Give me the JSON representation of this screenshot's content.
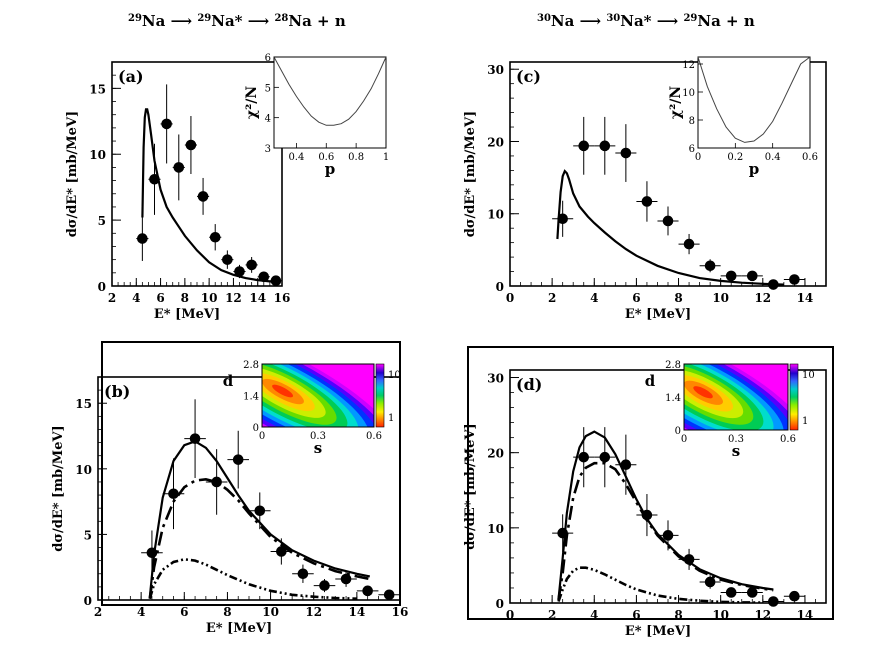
{
  "headers": {
    "left": {
      "parts": [
        {
          "sup": "29",
          "base": "Na"
        },
        {
          "arrow": true
        },
        {
          "sup": "29",
          "base": "Na*"
        },
        {
          "arrow": true
        },
        {
          "sup": "28",
          "base": "Na + n"
        }
      ]
    },
    "right": {
      "parts": [
        {
          "sup": "30",
          "base": "Na"
        },
        {
          "arrow": true
        },
        {
          "sup": "30",
          "base": "Na*"
        },
        {
          "arrow": true
        },
        {
          "sup": "29",
          "base": "Na + n"
        }
      ]
    }
  },
  "chart_data": [
    {
      "id": "a",
      "type": "line",
      "label": "(a)",
      "xlabel": "E* [MeV]",
      "ylabel": "dσ/dE* [mb/MeV]",
      "xlim": [
        2,
        16
      ],
      "ylim": [
        0,
        17
      ],
      "xticks": [
        2,
        4,
        6,
        8,
        10,
        12,
        14,
        16
      ],
      "yticks": [
        0,
        5,
        10,
        15
      ],
      "points": [
        {
          "x": 4.5,
          "y": 3.6,
          "xerr": 0.5,
          "yerr": 1.7
        },
        {
          "x": 5.5,
          "y": 8.1,
          "xerr": 0.5,
          "yerr": 2.7
        },
        {
          "x": 6.5,
          "y": 12.3,
          "xerr": 0.5,
          "yerr": 3.0
        },
        {
          "x": 7.5,
          "y": 9.0,
          "xerr": 0.5,
          "yerr": 2.5
        },
        {
          "x": 8.5,
          "y": 10.7,
          "xerr": 0.5,
          "yerr": 2.2
        },
        {
          "x": 9.5,
          "y": 6.8,
          "xerr": 0.5,
          "yerr": 1.4
        },
        {
          "x": 10.5,
          "y": 3.7,
          "xerr": 0.5,
          "yerr": 1.0
        },
        {
          "x": 11.5,
          "y": 2.0,
          "xerr": 0.5,
          "yerr": 0.7
        },
        {
          "x": 12.5,
          "y": 1.1,
          "xerr": 0.5,
          "yerr": 0.5
        },
        {
          "x": 13.5,
          "y": 1.6,
          "xerr": 0.5,
          "yerr": 0.6
        },
        {
          "x": 14.5,
          "y": 0.7,
          "xerr": 0.5,
          "yerr": 0.4
        },
        {
          "x": 15.5,
          "y": 0.4,
          "xerr": 0.5,
          "yerr": 0.3
        }
      ],
      "series": [
        {
          "name": "calc",
          "style": "solid",
          "x": [
            4.5,
            4.6,
            4.7,
            4.8,
            4.9,
            5.0,
            5.2,
            5.5,
            6.0,
            6.5,
            7.0,
            7.5,
            8.0,
            9.0,
            10.0,
            11.0,
            12.0,
            13.0,
            14.0,
            15.0,
            15.6
          ],
          "y": [
            5.2,
            10.5,
            12.8,
            13.4,
            13.4,
            13.0,
            11.6,
            9.5,
            7.3,
            6.0,
            5.2,
            4.5,
            3.8,
            2.7,
            1.8,
            1.2,
            0.85,
            0.6,
            0.45,
            0.35,
            0.3
          ]
        }
      ],
      "inset": {
        "type": "line",
        "xlabel": "p",
        "ylabel": "χ²/N",
        "xlim": [
          0.25,
          1.0
        ],
        "ylim": [
          3,
          6
        ],
        "xticks": [
          0.4,
          0.6,
          0.8,
          1
        ],
        "yticks": [
          3,
          4,
          5,
          6
        ],
        "x": [
          0.25,
          0.3,
          0.35,
          0.4,
          0.45,
          0.5,
          0.55,
          0.6,
          0.65,
          0.7,
          0.75,
          0.8,
          0.85,
          0.9,
          0.95,
          1.0
        ],
        "y": [
          6.0,
          5.55,
          5.1,
          4.7,
          4.35,
          4.05,
          3.85,
          3.75,
          3.75,
          3.8,
          3.95,
          4.2,
          4.55,
          4.95,
          5.45,
          6.0
        ]
      }
    },
    {
      "id": "c",
      "type": "line",
      "label": "(c)",
      "xlabel": "E* [MeV]",
      "ylabel": "dσ/dE* [mb/MeV]",
      "xlim": [
        0,
        15
      ],
      "ylim": [
        0,
        31
      ],
      "xticks": [
        0,
        2,
        4,
        6,
        8,
        10,
        12,
        14
      ],
      "yticks": [
        0,
        10,
        20,
        30
      ],
      "points": [
        {
          "x": 2.5,
          "y": 9.3,
          "xerr": 0.5,
          "yerr": 2.5
        },
        {
          "x": 3.5,
          "y": 19.4,
          "xerr": 0.5,
          "yerr": 4.0
        },
        {
          "x": 4.5,
          "y": 19.4,
          "xerr": 0.5,
          "yerr": 4.0
        },
        {
          "x": 5.5,
          "y": 18.4,
          "xerr": 0.5,
          "yerr": 4.0
        },
        {
          "x": 6.5,
          "y": 11.7,
          "xerr": 0.5,
          "yerr": 2.8
        },
        {
          "x": 7.5,
          "y": 9.0,
          "xerr": 0.5,
          "yerr": 2.0
        },
        {
          "x": 8.5,
          "y": 5.8,
          "xerr": 0.5,
          "yerr": 1.4
        },
        {
          "x": 9.5,
          "y": 2.8,
          "xerr": 0.5,
          "yerr": 0.9
        },
        {
          "x": 10.5,
          "y": 1.4,
          "xerr": 0.5,
          "yerr": 0.6
        },
        {
          "x": 11.5,
          "y": 1.4,
          "xerr": 0.5,
          "yerr": 0.5
        },
        {
          "x": 12.5,
          "y": 0.2,
          "xerr": 0.5,
          "yerr": 0.4
        },
        {
          "x": 13.5,
          "y": 0.9,
          "xerr": 0.5,
          "yerr": 0.5
        }
      ],
      "series": [
        {
          "name": "calc",
          "style": "solid",
          "x": [
            2.25,
            2.3,
            2.4,
            2.5,
            2.6,
            2.7,
            2.8,
            3.0,
            3.3,
            3.7,
            4.0,
            4.5,
            5.0,
            5.5,
            6.0,
            7.0,
            8.0,
            9.0,
            10.0,
            11.0,
            12.0,
            13.0
          ],
          "y": [
            6.5,
            9.0,
            13.0,
            15.2,
            15.9,
            15.6,
            14.8,
            12.8,
            11.0,
            9.6,
            8.7,
            7.4,
            6.2,
            5.1,
            4.2,
            2.8,
            1.8,
            1.1,
            0.7,
            0.45,
            0.3,
            0.2
          ]
        }
      ],
      "inset": {
        "type": "line",
        "xlabel": "p",
        "ylabel": "χ²/N",
        "xlim": [
          0,
          0.6
        ],
        "ylim": [
          6,
          12.5
        ],
        "xticks": [
          0,
          0.2,
          0.4,
          0.6
        ],
        "yticks": [
          6,
          8,
          10,
          12
        ],
        "x": [
          0.0,
          0.05,
          0.1,
          0.15,
          0.2,
          0.25,
          0.3,
          0.35,
          0.4,
          0.45,
          0.5,
          0.55,
          0.6
        ],
        "y": [
          12.5,
          10.4,
          8.8,
          7.5,
          6.7,
          6.4,
          6.5,
          7.0,
          7.9,
          9.2,
          10.6,
          12.0,
          12.5
        ]
      }
    },
    {
      "id": "b",
      "type": "line",
      "label": "(b)",
      "xlabel": "E* [MeV]",
      "ylabel": "dσ/dE* [mb/MeV]",
      "xlim": [
        2,
        16
      ],
      "ylim": [
        0,
        17
      ],
      "xticks": [
        2,
        4,
        6,
        8,
        10,
        12,
        14,
        16
      ],
      "yticks": [
        0,
        5,
        10,
        15
      ],
      "points": [
        {
          "x": 4.5,
          "y": 3.6,
          "xerr": 0.5,
          "yerr": 1.7
        },
        {
          "x": 5.5,
          "y": 8.1,
          "xerr": 0.5,
          "yerr": 2.7
        },
        {
          "x": 6.5,
          "y": 12.3,
          "xerr": 0.5,
          "yerr": 3.0
        },
        {
          "x": 7.5,
          "y": 9.0,
          "xerr": 0.5,
          "yerr": 2.5
        },
        {
          "x": 8.5,
          "y": 10.7,
          "xerr": 0.5,
          "yerr": 2.2
        },
        {
          "x": 9.5,
          "y": 6.8,
          "xerr": 0.5,
          "yerr": 1.4
        },
        {
          "x": 10.5,
          "y": 3.7,
          "xerr": 0.5,
          "yerr": 1.0
        },
        {
          "x": 11.5,
          "y": 2.0,
          "xerr": 0.5,
          "yerr": 0.7
        },
        {
          "x": 12.5,
          "y": 1.1,
          "xerr": 0.5,
          "yerr": 0.5
        },
        {
          "x": 13.5,
          "y": 1.6,
          "xerr": 0.5,
          "yerr": 0.6
        },
        {
          "x": 14.5,
          "y": 0.7,
          "xerr": 0.5,
          "yerr": 0.4
        },
        {
          "x": 15.5,
          "y": 0.4,
          "xerr": 0.5,
          "yerr": 0.3
        }
      ],
      "series": [
        {
          "name": "total",
          "style": "solid",
          "x": [
            4.4,
            4.6,
            5.0,
            5.5,
            6.0,
            6.5,
            7.0,
            7.5,
            8.0,
            8.5,
            9.0,
            10.0,
            11.0,
            12.0,
            13.0,
            14.0,
            14.6
          ],
          "y": [
            0.2,
            3.5,
            7.8,
            10.6,
            11.8,
            12.1,
            11.6,
            10.6,
            9.3,
            8.0,
            6.8,
            5.0,
            3.8,
            3.0,
            2.4,
            2.0,
            1.8
          ]
        },
        {
          "name": "component1",
          "style": "dash-dot",
          "x": [
            4.4,
            4.6,
            5.0,
            5.5,
            6.0,
            6.5,
            7.0,
            7.5,
            8.0,
            8.5,
            9.0,
            10.0,
            11.0,
            12.0,
            13.0,
            14.0,
            14.6
          ],
          "y": [
            0.1,
            2.5,
            5.5,
            7.5,
            8.6,
            9.1,
            9.2,
            9.0,
            8.4,
            7.6,
            6.6,
            4.8,
            3.6,
            2.8,
            2.2,
            1.8,
            1.6
          ]
        },
        {
          "name": "component2",
          "style": "dash-dot-dot",
          "x": [
            4.4,
            4.6,
            5.0,
            5.5,
            6.0,
            6.5,
            7.0,
            7.5,
            8.0,
            9.0,
            10.0,
            11.0,
            12.0,
            13.0,
            14.0
          ],
          "y": [
            0.1,
            1.2,
            2.3,
            2.9,
            3.1,
            3.0,
            2.7,
            2.3,
            1.9,
            1.2,
            0.7,
            0.4,
            0.25,
            0.15,
            0.1
          ]
        }
      ],
      "inset": {
        "type": "heatmap",
        "xlabel": "s",
        "ylabel": "d",
        "xlim": [
          0,
          0.6
        ],
        "ylim": [
          0,
          2.8
        ],
        "xticks": [
          "0",
          "0.3",
          "0.6"
        ],
        "yticks": [
          "0",
          "1.4",
          "2.8"
        ],
        "zticks": [
          "1",
          "10"
        ]
      }
    },
    {
      "id": "d",
      "type": "line",
      "label": "(d)",
      "xlabel": "E* [MeV]",
      "ylabel": "dσ/dE* [mb/MeV]",
      "xlim": [
        0,
        15
      ],
      "ylim": [
        0,
        31
      ],
      "xticks": [
        0,
        2,
        4,
        6,
        8,
        10,
        12,
        14
      ],
      "yticks": [
        0,
        10,
        20,
        30
      ],
      "points": [
        {
          "x": 2.5,
          "y": 9.3,
          "xerr": 0.5,
          "yerr": 2.5
        },
        {
          "x": 3.5,
          "y": 19.4,
          "xerr": 0.5,
          "yerr": 4.0
        },
        {
          "x": 4.5,
          "y": 19.4,
          "xerr": 0.5,
          "yerr": 4.0
        },
        {
          "x": 5.5,
          "y": 18.4,
          "xerr": 0.5,
          "yerr": 4.0
        },
        {
          "x": 6.5,
          "y": 11.7,
          "xerr": 0.5,
          "yerr": 2.8
        },
        {
          "x": 7.5,
          "y": 9.0,
          "xerr": 0.5,
          "yerr": 2.0
        },
        {
          "x": 8.5,
          "y": 5.8,
          "xerr": 0.5,
          "yerr": 1.4
        },
        {
          "x": 9.5,
          "y": 2.8,
          "xerr": 0.5,
          "yerr": 0.9
        },
        {
          "x": 10.5,
          "y": 1.4,
          "xerr": 0.5,
          "yerr": 0.6
        },
        {
          "x": 11.5,
          "y": 1.4,
          "xerr": 0.5,
          "yerr": 0.5
        },
        {
          "x": 12.5,
          "y": 0.2,
          "xerr": 0.5,
          "yerr": 0.4
        },
        {
          "x": 13.5,
          "y": 0.9,
          "xerr": 0.5,
          "yerr": 0.5
        }
      ],
      "series": [
        {
          "name": "total",
          "style": "solid",
          "x": [
            2.3,
            2.5,
            2.7,
            3.0,
            3.3,
            3.6,
            4.0,
            4.5,
            5.0,
            5.5,
            6.0,
            6.5,
            7.0,
            8.0,
            9.0,
            10.0,
            11.0,
            12.0,
            12.5
          ],
          "y": [
            0.5,
            6.0,
            12.0,
            17.5,
            20.7,
            22.2,
            22.8,
            22.0,
            19.8,
            16.8,
            13.8,
            11.2,
            9.2,
            6.4,
            4.5,
            3.3,
            2.5,
            2.0,
            1.8
          ]
        },
        {
          "name": "component1",
          "style": "dash-dot",
          "x": [
            2.3,
            2.5,
            2.7,
            3.0,
            3.3,
            3.6,
            4.0,
            4.5,
            5.0,
            5.5,
            6.0,
            6.5,
            7.0,
            8.0,
            9.0,
            10.0,
            11.0,
            12.0,
            12.5
          ],
          "y": [
            0.4,
            4.0,
            9.0,
            14.0,
            16.8,
            18.0,
            18.6,
            18.6,
            17.8,
            15.8,
            13.4,
            11.0,
            9.0,
            6.2,
            4.3,
            3.1,
            2.4,
            1.9,
            1.7
          ]
        },
        {
          "name": "component2",
          "style": "dash-dot-dot",
          "x": [
            2.3,
            2.5,
            2.7,
            3.0,
            3.3,
            3.6,
            4.0,
            4.5,
            5.0,
            5.5,
            6.0,
            7.0,
            8.0,
            9.0,
            10.0,
            11.0,
            12.0
          ],
          "y": [
            0.2,
            1.8,
            3.2,
            4.3,
            4.7,
            4.7,
            4.4,
            3.8,
            3.1,
            2.4,
            1.8,
            1.0,
            0.55,
            0.3,
            0.15,
            0.08,
            0.05
          ]
        }
      ],
      "inset": {
        "type": "heatmap",
        "xlabel": "s",
        "ylabel": "d",
        "xlim": [
          0,
          0.6
        ],
        "ylim": [
          0,
          2.8
        ],
        "xticks": [
          "0",
          "0.3",
          "0.6"
        ],
        "yticks": [
          "0",
          "1.4",
          "2.8"
        ],
        "zticks": [
          "1",
          "10"
        ]
      }
    }
  ]
}
